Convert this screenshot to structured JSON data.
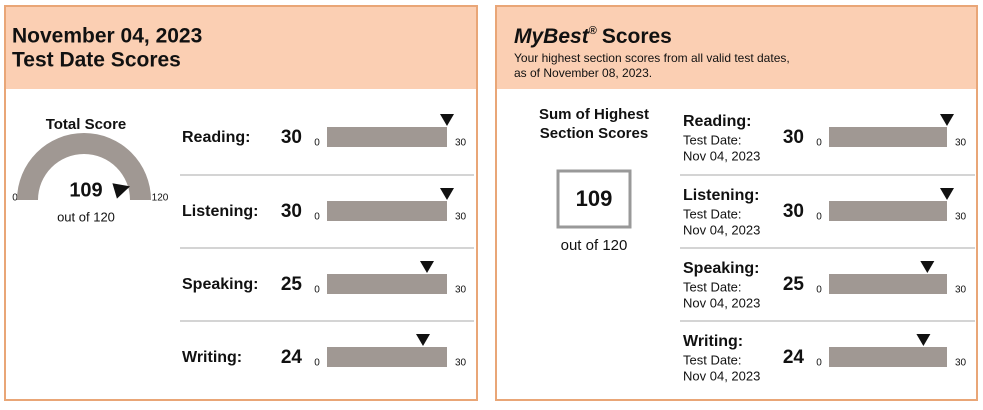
{
  "left": {
    "date": "November 04, 2023",
    "title": "Test Date Scores",
    "total": {
      "label": "Total Score",
      "value": 109,
      "min": 0,
      "max": 120,
      "out_of": "out of 120"
    },
    "scale": {
      "min": 0,
      "max": 30
    },
    "sections": [
      {
        "name": "Reading:",
        "score": 30
      },
      {
        "name": "Listening:",
        "score": 30
      },
      {
        "name": "Speaking:",
        "score": 25
      },
      {
        "name": "Writing:",
        "score": 24
      }
    ]
  },
  "right": {
    "title_em": "MyBest",
    "title_mark": "®",
    "title_rest": "Scores",
    "subtitle": [
      "Your highest section scores from all valid test dates,",
      "as of November 08, 2023."
    ],
    "sum_label": [
      "Sum of Highest",
      "Section Scores"
    ],
    "sum": 109,
    "out_of": "out of 120",
    "date_label": "Test Date:",
    "scale": {
      "min": 0,
      "max": 30
    },
    "sections": [
      {
        "name": "Reading:",
        "score": 30,
        "date": "Nov 04, 2023"
      },
      {
        "name": "Listening:",
        "score": 30,
        "date": "Nov 04, 2023"
      },
      {
        "name": "Speaking:",
        "score": 25,
        "date": "Nov 04, 2023"
      },
      {
        "name": "Writing:",
        "score": 24,
        "date": "Nov 04, 2023"
      }
    ]
  }
}
